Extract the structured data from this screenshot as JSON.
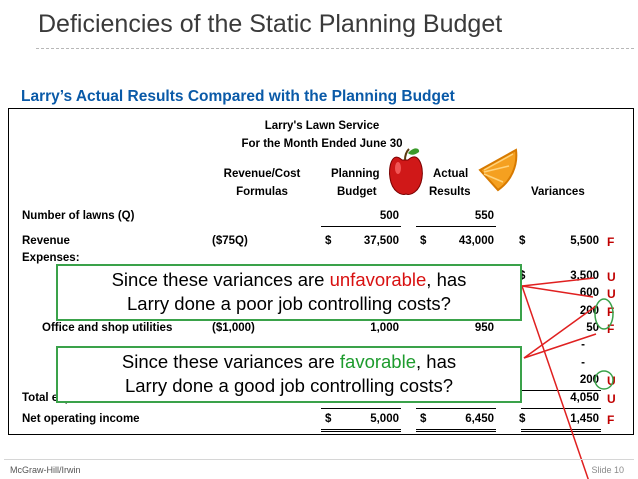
{
  "slide": {
    "title": "Deficiencies of the Static Planning Budget",
    "subtitle": "Larry’s Actual Results Compared with the Planning Budget",
    "footer_left": "McGraw-Hill/Irwin",
    "footer_right": "Slide 10"
  },
  "report": {
    "company": "Larry's Lawn Service",
    "period": "For the Month Ended June 30",
    "headers": {
      "formula_1": "Revenue/Cost",
      "formula_2": "Formulas",
      "planning_1": "Planning",
      "planning_2": "Budget",
      "actual_1": "Actual",
      "actual_2": "Results",
      "variances": "Variances"
    },
    "rows": {
      "lawns": {
        "label": "Number of lawns (Q)",
        "planning": "500",
        "actual": "550"
      },
      "revenue": {
        "label": "Revenue",
        "formula": "($75Q)",
        "planning": "37,500",
        "actual": "43,000",
        "variance": "5,500",
        "flag": "F"
      },
      "expenses_label": "Expenses:",
      "exp1": {
        "variance": "3,500",
        "flag": "U"
      },
      "exp2": {
        "variance": "600",
        "flag": "U"
      },
      "exp3": {
        "variance": "200",
        "flag": "F"
      },
      "utilities": {
        "label": "Office and shop utilities",
        "formula": "($1,000)",
        "planning": "1,000",
        "actual": "950",
        "variance": "50",
        "flag": "F"
      },
      "exp5": {
        "variance": "-"
      },
      "exp6": {
        "variance": "-"
      },
      "exp7": {
        "variance": "200",
        "flag": "U"
      },
      "total": {
        "label": "Total expenses",
        "variance": "4,050",
        "flag": "U"
      },
      "noi": {
        "label": "Net operating income",
        "planning": "5,000",
        "actual": "6,450",
        "variance": "1,450",
        "flag": "F"
      }
    },
    "currency": "$"
  },
  "callouts": {
    "unfavorable": {
      "pre": "Since these variances are ",
      "word": "unfavorable",
      "post": ", has",
      "line2": "Larry done a poor job controlling costs?"
    },
    "favorable": {
      "pre": "Since these variances are ",
      "word": "favorable",
      "post": ", has",
      "line2": "Larry done a good job controlling costs?"
    }
  },
  "colors": {
    "title_blue": "#0a5aa8",
    "flag_red": "#c00000",
    "callout_border": "#3aa24a",
    "unfavorable": "#d81010",
    "favorable": "#1d9b2d"
  },
  "icons": [
    "apple-icon",
    "orange-slice-icon"
  ]
}
